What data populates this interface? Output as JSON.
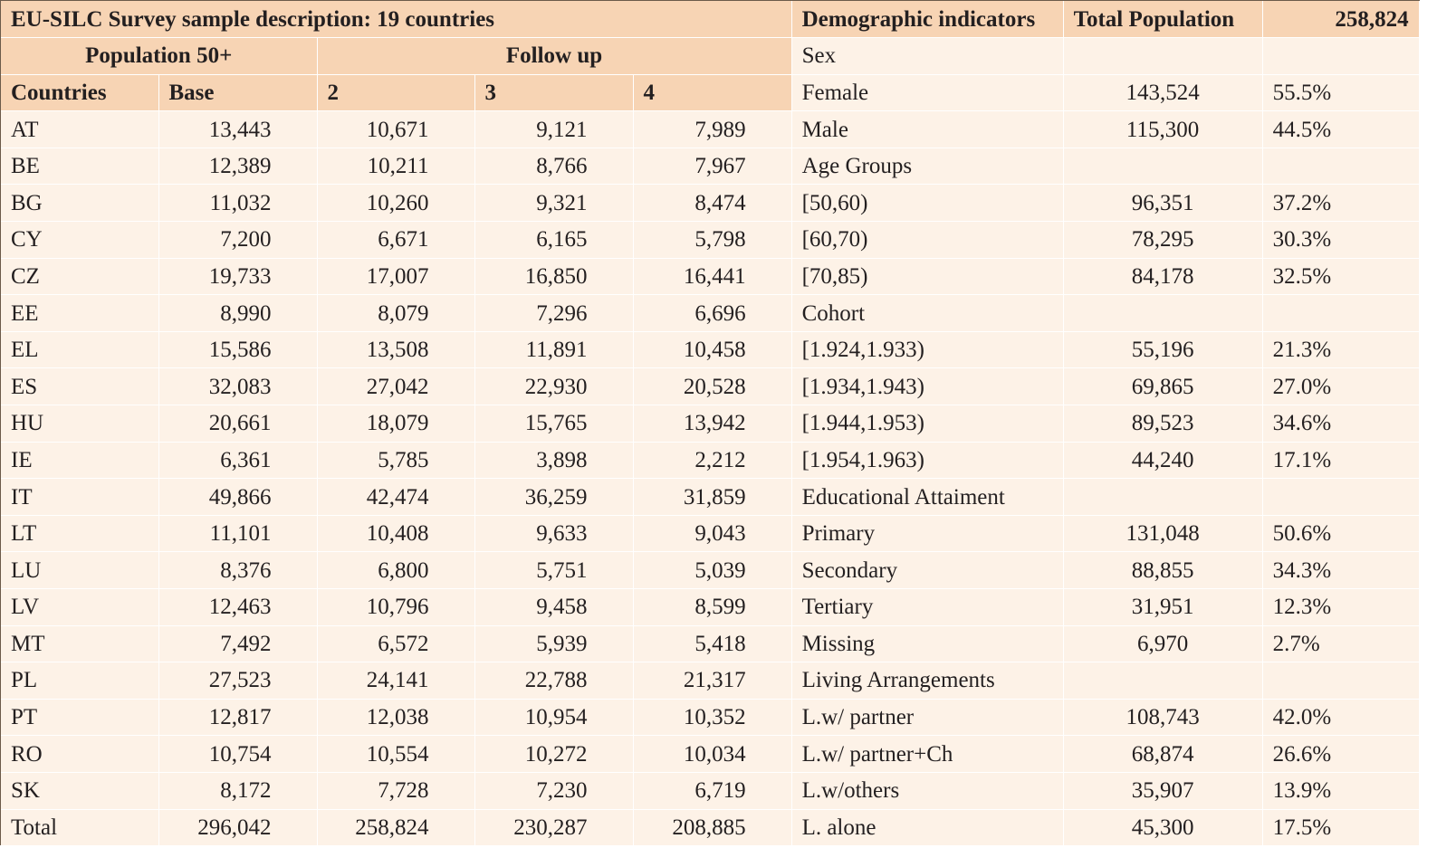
{
  "title": "EU-SILC Survey sample description: 19 countries",
  "demo_header": "Demographic indicators",
  "total_pop_label": "Total Population",
  "total_pop_value": "258,824",
  "group_pop": "Population 50+",
  "group_follow": "Follow up",
  "col_headers": [
    "Countries",
    "Base",
    "2",
    "3",
    "4"
  ],
  "sex_label": "Sex",
  "countries": [
    {
      "c": "AT",
      "base": "13,443",
      "f2": "10,671",
      "f3": "9,121",
      "f4": "7,989"
    },
    {
      "c": "BE",
      "base": "12,389",
      "f2": "10,211",
      "f3": "8,766",
      "f4": "7,967"
    },
    {
      "c": "BG",
      "base": "11,032",
      "f2": "10,260",
      "f3": "9,321",
      "f4": "8,474"
    },
    {
      "c": "CY",
      "base": "7,200",
      "f2": "6,671",
      "f3": "6,165",
      "f4": "5,798"
    },
    {
      "c": "CZ",
      "base": "19,733",
      "f2": "17,007",
      "f3": "16,850",
      "f4": "16,441"
    },
    {
      "c": "EE",
      "base": "8,990",
      "f2": "8,079",
      "f3": "7,296",
      "f4": "6,696"
    },
    {
      "c": "EL",
      "base": "15,586",
      "f2": "13,508",
      "f3": "11,891",
      "f4": "10,458"
    },
    {
      "c": "ES",
      "base": "32,083",
      "f2": "27,042",
      "f3": "22,930",
      "f4": "20,528"
    },
    {
      "c": "HU",
      "base": "20,661",
      "f2": "18,079",
      "f3": "15,765",
      "f4": "13,942"
    },
    {
      "c": "IE",
      "base": "6,361",
      "f2": "5,785",
      "f3": "3,898",
      "f4": "2,212"
    },
    {
      "c": "IT",
      "base": "49,866",
      "f2": "42,474",
      "f3": "36,259",
      "f4": "31,859"
    },
    {
      "c": "LT",
      "base": "11,101",
      "f2": "10,408",
      "f3": "9,633",
      "f4": "9,043"
    },
    {
      "c": "LU",
      "base": "8,376",
      "f2": "6,800",
      "f3": "5,751",
      "f4": "5,039"
    },
    {
      "c": "LV",
      "base": "12,463",
      "f2": "10,796",
      "f3": "9,458",
      "f4": "8,599"
    },
    {
      "c": "MT",
      "base": "7,492",
      "f2": "6,572",
      "f3": "5,939",
      "f4": "5,418"
    },
    {
      "c": "PL",
      "base": "27,523",
      "f2": "24,141",
      "f3": "22,788",
      "f4": "21,317"
    },
    {
      "c": "PT",
      "base": "12,817",
      "f2": "12,038",
      "f3": "10,954",
      "f4": "10,352"
    },
    {
      "c": "RO",
      "base": "10,754",
      "f2": "10,554",
      "f3": "10,272",
      "f4": "10,034"
    },
    {
      "c": "SK",
      "base": "8,172",
      "f2": "7,728",
      "f3": "7,230",
      "f4": "6,719"
    },
    {
      "c": "Total",
      "base": "296,042",
      "f2": "258,824",
      "f3": "230,287",
      "f4": "208,885"
    }
  ],
  "demo_rows": [
    {
      "label": "Female",
      "n": "143,524",
      "pct": "55.5%"
    },
    {
      "label": "Male",
      "n": "115,300",
      "pct": "44.5%"
    },
    {
      "label": " Age Groups",
      "n": "",
      "pct": ""
    },
    {
      "label": "[50,60)",
      "n": "96,351",
      "pct": "37.2%"
    },
    {
      "label": "[60,70)",
      "n": "78,295",
      "pct": "30.3%"
    },
    {
      "label": "[70,85)",
      "n": "84,178",
      "pct": "32.5%"
    },
    {
      "label": "Cohort",
      "n": "",
      "pct": ""
    },
    {
      "label": "[1.924,1.933)",
      "n": "55,196",
      "pct": "21.3%"
    },
    {
      "label": "[1.934,1.943)",
      "n": "69,865",
      "pct": "27.0%"
    },
    {
      "label": "[1.944,1.953)",
      "n": "89,523",
      "pct": "34.6%"
    },
    {
      "label": "[1.954,1.963)",
      "n": "44,240",
      "pct": "17.1%"
    },
    {
      "label": "Educational Attaiment",
      "n": "",
      "pct": ""
    },
    {
      "label": "Primary",
      "n": "131,048",
      "pct": "50.6%"
    },
    {
      "label": "Secondary",
      "n": "88,855",
      "pct": "34.3%"
    },
    {
      "label": "Tertiary",
      "n": "31,951",
      "pct": "12.3%"
    },
    {
      "label": "Missing",
      "n": "6,970",
      "pct": "2.7%"
    },
    {
      "label": "Living Arrangements",
      "n": "",
      "pct": ""
    },
    {
      "label": "L.w/ partner",
      "n": "108,743",
      "pct": "42.0%"
    },
    {
      "label": "L.w/ partner+Ch",
      "n": "68,874",
      "pct": "26.6%"
    },
    {
      "label": "L.w/others",
      "n": "35,907",
      "pct": "13.9%"
    },
    {
      "label": "L. alone",
      "n": "45,300",
      "pct": "17.5%"
    }
  ]
}
